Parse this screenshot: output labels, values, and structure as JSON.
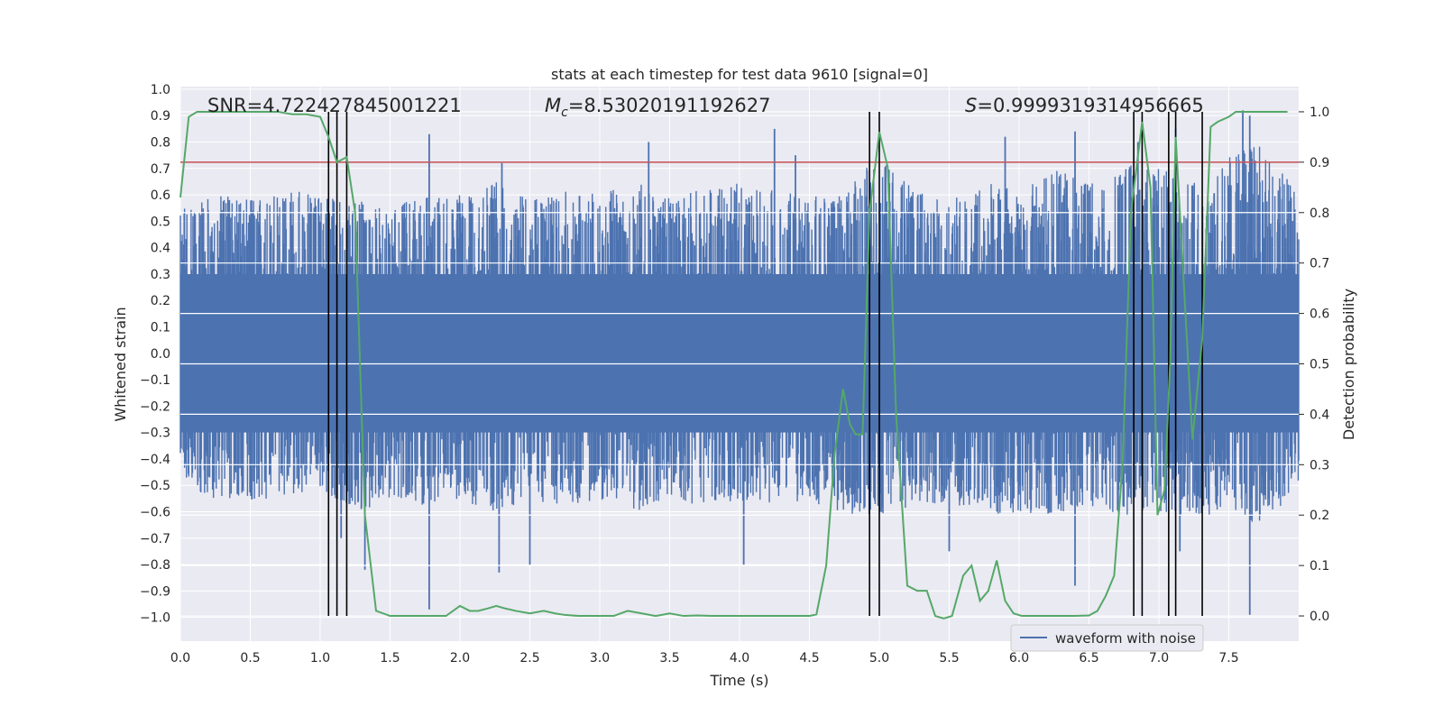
{
  "chart_data": {
    "type": "line",
    "title": "stats at each timestep for test data 9610 [signal=0]",
    "xlabel": "Time (s)",
    "ylabel_left": "Whitened strain",
    "ylabel_right": "Detection probability",
    "xlim": [
      0.0,
      8.0
    ],
    "ylim_left": [
      -1.09,
      1.01
    ],
    "ylim_right": [
      -0.05,
      1.05
    ],
    "x_ticks": [
      0.0,
      0.5,
      1.0,
      1.5,
      2.0,
      2.5,
      3.0,
      3.5,
      4.0,
      4.5,
      5.0,
      5.5,
      6.0,
      6.5,
      7.0,
      7.5
    ],
    "x_tick_labels": [
      "0.0",
      "0.5",
      "1.0",
      "1.5",
      "2.0",
      "2.5",
      "3.0",
      "3.5",
      "4.0",
      "4.5",
      "5.0",
      "5.5",
      "6.0",
      "6.5",
      "7.0",
      "7.5"
    ],
    "y_ticks_left": [
      1.0,
      0.9,
      0.8,
      0.7,
      0.6,
      0.5,
      0.4,
      0.3,
      0.2,
      0.1,
      0.0,
      -0.1,
      -0.2,
      -0.3,
      -0.4,
      -0.5,
      -0.6,
      -0.7,
      -0.8,
      -0.9,
      -1.0
    ],
    "y_tick_labels_left": [
      "1.0",
      "0.9",
      "0.8",
      "0.7",
      "0.6",
      "0.5",
      "0.4",
      "0.3",
      "0.2",
      "0.1",
      "0.0",
      "−0.1",
      "−0.2",
      "−0.3",
      "−0.4",
      "−0.5",
      "−0.6",
      "−0.7",
      "−0.8",
      "−0.9",
      "−1.0"
    ],
    "y_ticks_right": [
      1.0,
      0.9,
      0.8,
      0.7,
      0.6,
      0.5,
      0.4,
      0.3,
      0.2,
      0.1,
      0.0
    ],
    "y_tick_labels_right": [
      "1.0",
      "0.9",
      "0.8",
      "0.7",
      "0.6",
      "0.5",
      "0.4",
      "0.3",
      "0.2",
      "0.1",
      "0.0"
    ],
    "annotations": {
      "snr": "SNR=4.722427845001221",
      "mc_prefix": "M",
      "mc_sub": "c",
      "mc_value": "=8.53020191192627",
      "s_prefix": "S",
      "s_value": "=0.9999319314956665"
    },
    "legend": {
      "position": "lower-right",
      "label": "waveform with noise"
    },
    "threshold": 0.9,
    "vertical_markers": [
      1.06,
      1.12,
      1.19,
      4.93,
      5.0,
      6.82,
      6.88,
      7.07,
      7.12,
      7.31
    ],
    "waveform": {
      "name": "waveform with noise",
      "color": "#4c72b0",
      "envelope_x": [
        0.0,
        0.25,
        0.5,
        0.75,
        1.0,
        1.25,
        1.5,
        1.75,
        2.0,
        2.25,
        2.5,
        2.75,
        3.0,
        3.25,
        3.5,
        3.75,
        4.0,
        4.25,
        4.5,
        4.75,
        5.0,
        5.25,
        5.5,
        5.75,
        6.0,
        6.25,
        6.5,
        6.75,
        7.0,
        7.25,
        7.5,
        7.75,
        8.0
      ],
      "upper": [
        0.55,
        0.6,
        0.58,
        0.62,
        0.6,
        0.58,
        0.55,
        0.6,
        0.6,
        0.65,
        0.58,
        0.62,
        0.6,
        0.65,
        0.6,
        0.62,
        0.66,
        0.62,
        0.6,
        0.62,
        0.75,
        0.62,
        0.58,
        0.65,
        0.62,
        0.7,
        0.65,
        0.72,
        0.7,
        0.66,
        0.75,
        0.8,
        0.6
      ],
      "lower": [
        -0.5,
        -0.55,
        -0.56,
        -0.55,
        -0.52,
        -0.6,
        -0.56,
        -0.58,
        -0.56,
        -0.6,
        -0.56,
        -0.58,
        -0.56,
        -0.6,
        -0.55,
        -0.58,
        -0.56,
        -0.58,
        -0.56,
        -0.62,
        -0.62,
        -0.58,
        -0.56,
        -0.62,
        -0.6,
        -0.62,
        -0.58,
        -0.62,
        -0.6,
        -0.62,
        -0.62,
        -0.65,
        -0.5
      ],
      "peaks": [
        {
          "x": 0.35,
          "y": 0.58
        },
        {
          "x": 1.78,
          "y": 0.83
        },
        {
          "x": 2.3,
          "y": 0.72
        },
        {
          "x": 3.35,
          "y": 0.8
        },
        {
          "x": 4.25,
          "y": 0.85
        },
        {
          "x": 4.4,
          "y": 0.75
        },
        {
          "x": 5.9,
          "y": 0.82
        },
        {
          "x": 6.4,
          "y": 0.84
        },
        {
          "x": 6.85,
          "y": 0.8
        },
        {
          "x": 7.12,
          "y": 0.85
        },
        {
          "x": 7.6,
          "y": 0.92
        },
        {
          "x": 7.65,
          "y": 0.9
        },
        {
          "x": 1.78,
          "y": -0.97
        },
        {
          "x": 1.32,
          "y": -0.82
        },
        {
          "x": 2.28,
          "y": -0.83
        },
        {
          "x": 2.5,
          "y": -0.8
        },
        {
          "x": 4.03,
          "y": -0.8
        },
        {
          "x": 6.4,
          "y": -0.88
        },
        {
          "x": 7.65,
          "y": -0.99
        },
        {
          "x": 7.15,
          "y": -0.75
        },
        {
          "x": 5.5,
          "y": -0.75
        },
        {
          "x": 1.15,
          "y": -0.7
        }
      ]
    },
    "probability": {
      "name": "Detection probability",
      "color": "#55a868",
      "x": [
        0.0,
        0.06,
        0.12,
        0.2,
        0.3,
        0.4,
        0.5,
        0.6,
        0.7,
        0.8,
        0.9,
        1.0,
        1.06,
        1.12,
        1.19,
        1.25,
        1.32,
        1.4,
        1.5,
        1.65,
        1.8,
        1.9,
        2.0,
        2.07,
        2.13,
        2.2,
        2.26,
        2.32,
        2.4,
        2.5,
        2.6,
        2.68,
        2.75,
        2.85,
        3.0,
        3.1,
        3.2,
        3.3,
        3.4,
        3.5,
        3.6,
        3.7,
        3.8,
        4.0,
        4.2,
        4.4,
        4.5,
        4.55,
        4.62,
        4.68,
        4.74,
        4.79,
        4.83,
        4.88,
        4.93,
        5.0,
        5.06,
        5.12,
        5.2,
        5.27,
        5.34,
        5.4,
        5.46,
        5.52,
        5.6,
        5.66,
        5.72,
        5.78,
        5.84,
        5.9,
        5.96,
        6.02,
        6.1,
        6.25,
        6.4,
        6.5,
        6.56,
        6.62,
        6.68,
        6.74,
        6.8,
        6.88,
        6.94,
        6.99,
        7.04,
        7.08,
        7.12,
        7.18,
        7.24,
        7.31,
        7.37,
        7.42,
        7.5,
        7.55,
        7.6,
        7.75,
        7.92
      ],
      "y": [
        0.83,
        0.99,
        1.0,
        1.0,
        1.0,
        1.0,
        1.0,
        1.0,
        1.0,
        0.995,
        0.995,
        0.99,
        0.95,
        0.9,
        0.91,
        0.8,
        0.2,
        0.01,
        0.0,
        0.0,
        0.0,
        0.0,
        0.02,
        0.01,
        0.01,
        0.015,
        0.02,
        0.015,
        0.01,
        0.005,
        0.01,
        0.005,
        0.002,
        0.0,
        0.0,
        0.0,
        0.01,
        0.005,
        0.0,
        0.005,
        0.0,
        0.001,
        0.0,
        0.0,
        0.0,
        0.0,
        0.0,
        0.003,
        0.1,
        0.32,
        0.45,
        0.38,
        0.36,
        0.36,
        0.8,
        0.96,
        0.89,
        0.4,
        0.06,
        0.05,
        0.05,
        0.0,
        -0.005,
        0.0,
        0.08,
        0.1,
        0.03,
        0.05,
        0.11,
        0.03,
        0.005,
        0.0,
        0.0,
        0.0,
        0.0,
        0.001,
        0.01,
        0.04,
        0.08,
        0.3,
        0.8,
        0.98,
        0.85,
        0.2,
        0.25,
        0.5,
        0.95,
        0.65,
        0.35,
        0.55,
        0.97,
        0.98,
        0.99,
        1.0,
        1.0,
        1.0,
        1.0
      ]
    }
  }
}
